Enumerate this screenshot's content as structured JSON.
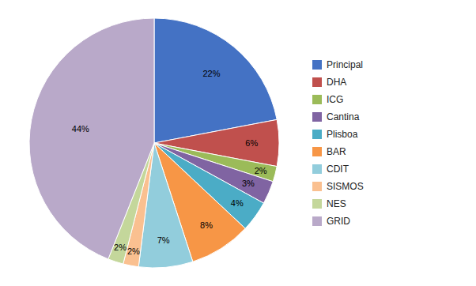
{
  "chart_data": {
    "type": "pie",
    "categories": [
      "Principal",
      "DHA",
      "ICG",
      "Cantina",
      "Plisboa",
      "BAR",
      "CDIT",
      "SISMOS",
      "NES",
      "GRID"
    ],
    "values": [
      22,
      6,
      2,
      3,
      4,
      8,
      7,
      2,
      2,
      44
    ],
    "value_labels": [
      "22%",
      "6%",
      "2%",
      "3%",
      "4%",
      "8%",
      "7%",
      "2%",
      "2%",
      "44%"
    ],
    "colors": [
      "#4472C4",
      "#C0504D",
      "#9BBB59",
      "#8064A2",
      "#4BACC6",
      "#F79646",
      "#92CDDC",
      "#FAC090",
      "#C4D79B",
      "#B9A9C9"
    ],
    "data_labels": true,
    "legend": "right"
  }
}
